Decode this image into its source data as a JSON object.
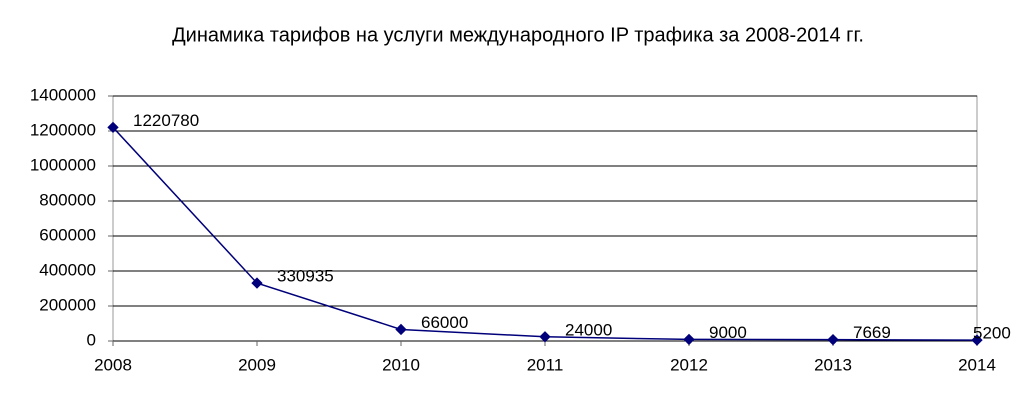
{
  "chart_data": {
    "type": "line",
    "title": "Динамика тарифов на услуги международного IP трафика за 2008-2014 гг.",
    "x": [
      2008,
      2009,
      2010,
      2011,
      2012,
      2013,
      2014
    ],
    "values": [
      1220780,
      330935,
      66000,
      24000,
      9000,
      7669,
      5200
    ],
    "color": "#00007a",
    "xlim": [
      2008,
      2014
    ],
    "xticks": [
      2008,
      2009,
      2010,
      2011,
      2012,
      2013,
      2014
    ],
    "ylim": [
      0,
      1400000
    ],
    "yticks": [
      0,
      200000,
      400000,
      600000,
      800000,
      1000000,
      1200000,
      1400000
    ],
    "grid": true
  }
}
